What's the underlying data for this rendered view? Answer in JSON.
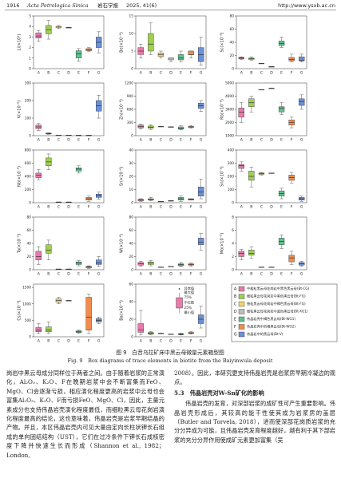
{
  "header": {
    "page": "1916",
    "journal": "Acta Petrologica Sinica",
    "journal_cn": "岩石学报",
    "issue": "2025, 41(6)",
    "url": "http://www.ysxb.ac.cn"
  },
  "chart_data": [
    {
      "type": "box",
      "y_label": "Li(×10³)",
      "categories": [
        "A",
        "B",
        "C",
        "D",
        "E",
        "F",
        "G"
      ],
      "colors": [
        "#e97aab",
        "#9fd052",
        "#f3d36a",
        "#bdbdbd",
        "#5cc28c",
        "#f08c4c",
        "#6b8fd8"
      ],
      "ylim": [
        0,
        5
      ],
      "yticks": [
        0,
        1,
        2,
        3,
        4,
        5
      ],
      "boxes": [
        [
          2.6,
          2.9,
          3.1,
          3.4,
          3.6
        ],
        [
          2.8,
          3.3,
          3.7,
          4.1,
          4.6
        ],
        [
          3.8,
          3.9,
          4.0,
          4.0,
          4.1
        ],
        [
          3.9,
          3.9,
          3.9,
          3.9,
          3.9
        ],
        [
          0.7,
          1.0,
          1.4,
          1.7,
          1.9
        ],
        [
          1.6,
          1.7,
          1.8,
          1.9,
          2.0
        ],
        [
          1.5,
          2.0,
          2.5,
          3.0,
          3.5
        ]
      ]
    },
    {
      "type": "box",
      "y_label": "Be(×10⁻⁶)",
      "categories": [
        "A",
        "B",
        "C",
        "D",
        "E",
        "F",
        "G"
      ],
      "colors": [
        "#e97aab",
        "#9fd052",
        "#f3d36a",
        "#bdbdbd",
        "#5cc28c",
        "#f08c4c",
        "#6b8fd8"
      ],
      "ylim": [
        0,
        15
      ],
      "yticks": [
        0,
        5,
        10,
        15
      ],
      "boxes": [
        [
          3,
          4,
          5,
          6,
          7
        ],
        [
          4,
          5,
          7,
          10,
          13
        ],
        [
          3,
          3.5,
          4,
          4.5,
          5
        ],
        [
          2,
          2.5,
          3,
          3,
          3
        ],
        [
          2,
          2.5,
          3,
          4,
          5
        ],
        [
          3,
          4,
          4,
          5,
          5
        ],
        [
          1,
          2,
          4,
          6,
          9
        ]
      ]
    },
    {
      "type": "box",
      "y_label": "Sc(×10⁻⁶)",
      "categories": [
        "A",
        "B",
        "C",
        "D",
        "E",
        "F",
        "G"
      ],
      "colors": [
        "#e97aab",
        "#9fd052",
        "#f3d36a",
        "#bdbdbd",
        "#5cc28c",
        "#f08c4c",
        "#6b8fd8"
      ],
      "ylim": [
        0,
        80
      ],
      "yticks": [
        0,
        20,
        40,
        60,
        80
      ],
      "boxes": [
        [
          14,
          15,
          16,
          17,
          18
        ],
        [
          13,
          14,
          15,
          16,
          18
        ],
        [
          8,
          8,
          8,
          8,
          8
        ],
        [
          3,
          3,
          3,
          3,
          3
        ],
        [
          32,
          35,
          38,
          42,
          48
        ],
        [
          10,
          12,
          14,
          17,
          22
        ],
        [
          10,
          12,
          13,
          18,
          22
        ]
      ]
    },
    {
      "type": "box",
      "y_label": "V(×10⁻⁶)",
      "categories": [
        "A",
        "B",
        "C",
        "D",
        "E",
        "F",
        "G"
      ],
      "colors": [
        "#e97aab",
        "#9fd052",
        "#f3d36a",
        "#bdbdbd",
        "#5cc28c",
        "#f08c4c",
        "#6b8fd8"
      ],
      "ylim": [
        0,
        300
      ],
      "yticks": [
        0,
        100,
        200,
        300
      ],
      "boxes": [
        [
          30,
          40,
          50,
          60,
          70
        ],
        [
          8,
          10,
          12,
          14,
          16
        ],
        [
          3,
          3,
          3,
          3,
          3
        ],
        [
          3,
          3,
          3,
          3,
          3
        ],
        [
          2,
          2,
          2,
          2,
          2
        ],
        [
          2,
          2,
          2,
          2,
          2
        ],
        [
          100,
          140,
          170,
          200,
          230
        ]
      ]
    },
    {
      "type": "box",
      "y_label": "Zn(×10⁻⁶)",
      "categories": [
        "A",
        "B",
        "C",
        "D",
        "E",
        "F",
        "G"
      ],
      "colors": [
        "#e97aab",
        "#9fd052",
        "#f3d36a",
        "#bdbdbd",
        "#5cc28c",
        "#f08c4c",
        "#6b8fd8"
      ],
      "ylim": [
        0,
        1200
      ],
      "yticks": [
        0,
        300,
        600,
        900,
        1200
      ],
      "boxes": [
        [
          150,
          180,
          210,
          240,
          260
        ],
        [
          140,
          170,
          190,
          220,
          250
        ],
        [
          210,
          210,
          210,
          210,
          210
        ],
        [
          200,
          200,
          200,
          200,
          200
        ],
        [
          130,
          150,
          160,
          200,
          230
        ],
        [
          170,
          190,
          200,
          210,
          230
        ],
        [
          550,
          620,
          680,
          740,
          800
        ]
      ]
    },
    {
      "type": "box",
      "y_label": "Rb(×10⁻⁶)",
      "categories": [
        "A",
        "B",
        "C",
        "D",
        "E",
        "F",
        "G"
      ],
      "colors": [
        "#e97aab",
        "#9fd052",
        "#f3d36a",
        "#bdbdbd",
        "#5cc28c",
        "#f08c4c",
        "#6b8fd8"
      ],
      "ylim": [
        1000,
        5000
      ],
      "yticks": [
        1000,
        2000,
        3000,
        4000,
        5000
      ],
      "boxes": [
        [
          2000,
          2400,
          2800,
          3100,
          3500
        ],
        [
          2800,
          3200,
          3500,
          3800,
          4000
        ],
        [
          4500,
          4500,
          4500,
          4500,
          4500
        ],
        [
          4600,
          4600,
          4600,
          4600,
          4600
        ],
        [
          2600,
          2800,
          3100,
          3200,
          3500
        ],
        [
          1600,
          1800,
          2000,
          2200,
          2400
        ],
        [
          3000,
          3300,
          3600,
          3800,
          4100
        ]
      ]
    },
    {
      "type": "box",
      "y_label": "Nb(×10⁻⁶)",
      "categories": [
        "A",
        "B",
        "C",
        "D",
        "E",
        "F",
        "G"
      ],
      "colors": [
        "#e97aab",
        "#9fd052",
        "#f3d36a",
        "#bdbdbd",
        "#5cc28c",
        "#f08c4c",
        "#6b8fd8"
      ],
      "ylim": [
        0,
        800
      ],
      "yticks": [
        0,
        200,
        400,
        600,
        800
      ],
      "boxes": [
        [
          350,
          380,
          420,
          450,
          500
        ],
        [
          500,
          560,
          620,
          680,
          740
        ],
        [
          10,
          10,
          10,
          10,
          10
        ],
        [
          10,
          10,
          10,
          10,
          10
        ],
        [
          450,
          480,
          510,
          530,
          560
        ],
        [
          20,
          40,
          60,
          80,
          100
        ],
        [
          50,
          80,
          110,
          130,
          160
        ]
      ]
    },
    {
      "type": "box",
      "y_label": "Sr(×10⁻⁶)",
      "categories": [
        "A",
        "B",
        "C",
        "D",
        "E",
        "F",
        "G"
      ],
      "colors": [
        "#e97aab",
        "#9fd052",
        "#f3d36a",
        "#bdbdbd",
        "#5cc28c",
        "#f08c4c",
        "#6b8fd8"
      ],
      "ylim": [
        0,
        40
      ],
      "yticks": [
        0,
        10,
        20,
        30,
        40
      ],
      "boxes": [
        [
          1,
          1.5,
          2,
          2.5,
          3
        ],
        [
          1.5,
          2,
          2.5,
          3,
          4
        ],
        [
          1,
          1,
          1,
          1,
          1
        ],
        [
          1.5,
          1.5,
          1.5,
          1.5,
          1.5
        ],
        [
          1,
          2,
          3,
          4,
          5
        ],
        [
          2,
          2,
          2.5,
          3,
          3
        ],
        [
          3,
          5,
          8,
          12,
          18
        ]
      ]
    },
    {
      "type": "box",
      "y_label": "Sn(×10⁻⁶)",
      "categories": [
        "A",
        "B",
        "C",
        "D",
        "E",
        "F",
        "G"
      ],
      "colors": [
        "#e97aab",
        "#9fd052",
        "#f3d36a",
        "#bdbdbd",
        "#5cc28c",
        "#f08c4c",
        "#6b8fd8"
      ],
      "ylim": [
        0,
        400
      ],
      "yticks": [
        0,
        100,
        200,
        300,
        400
      ],
      "boxes": [
        [
          240,
          260,
          280,
          290,
          310
        ],
        [
          120,
          170,
          200,
          240,
          270
        ],
        [
          210,
          215,
          220,
          225,
          230
        ],
        [
          225,
          225,
          225,
          225,
          225
        ],
        [
          30,
          50,
          70,
          90,
          110
        ],
        [
          150,
          170,
          190,
          210,
          230
        ],
        [
          10,
          20,
          30,
          40,
          50
        ]
      ]
    },
    {
      "type": "box",
      "y_label": "Ta(×10⁻⁶)",
      "categories": [
        "A",
        "B",
        "C",
        "D",
        "E",
        "F",
        "G"
      ],
      "colors": [
        "#e97aab",
        "#9fd052",
        "#f3d36a",
        "#bdbdbd",
        "#5cc28c",
        "#f08c4c",
        "#6b8fd8"
      ],
      "ylim": [
        0,
        80
      ],
      "yticks": [
        0,
        20,
        40,
        60,
        80
      ],
      "boxes": [
        [
          8,
          15,
          20,
          28,
          35
        ],
        [
          15,
          25,
          30,
          38,
          45
        ],
        [
          1,
          1,
          1,
          1,
          1
        ],
        [
          1,
          1,
          1,
          1,
          1
        ],
        [
          6,
          8,
          10,
          12,
          14
        ],
        [
          2,
          3,
          4,
          5,
          6
        ],
        [
          5,
          8,
          10,
          15,
          20
        ]
      ]
    },
    {
      "type": "box",
      "y_label": "W(×10⁻⁶)",
      "categories": [
        "A",
        "B",
        "C",
        "D",
        "E",
        "F",
        "G"
      ],
      "colors": [
        "#e97aab",
        "#9fd052",
        "#f3d36a",
        "#bdbdbd",
        "#5cc28c",
        "#f08c4c",
        "#6b8fd8"
      ],
      "ylim": [
        0,
        80
      ],
      "yticks": [
        0,
        20,
        40,
        60,
        80
      ],
      "boxes": [
        [
          5,
          7,
          9,
          11,
          13
        ],
        [
          6,
          8,
          10,
          12,
          14
        ],
        [
          4,
          4,
          4,
          4,
          4
        ],
        [
          5,
          5,
          5,
          5,
          5
        ],
        [
          5,
          6,
          8,
          9,
          11
        ],
        [
          5,
          7,
          8,
          9,
          10
        ],
        [
          30,
          38,
          42,
          48,
          55
        ]
      ]
    },
    {
      "type": "box",
      "y_label": "Mo(×10⁻⁶)",
      "categories": [
        "A",
        "B",
        "C",
        "D",
        "E",
        "F",
        "G"
      ],
      "colors": [
        "#e97aab",
        "#9fd052",
        "#f3d36a",
        "#bdbdbd",
        "#5cc28c",
        "#f08c4c",
        "#6b8fd8"
      ],
      "ylim": [
        0,
        8
      ],
      "yticks": [
        0,
        2,
        4,
        6,
        8
      ],
      "boxes": [
        [
          1.5,
          2,
          2.5,
          2.8,
          3.1
        ],
        [
          1.7,
          2.2,
          2.5,
          3,
          3.5
        ],
        [
          0.4,
          0.4,
          0.4,
          0.4,
          0.4
        ],
        [
          0.4,
          0.4,
          0.4,
          0.4,
          0.4
        ],
        [
          3.2,
          3.8,
          4.3,
          4.8,
          5.3
        ],
        [
          0.8,
          1.2,
          1.8,
          2.2,
          2.8
        ],
        [
          0.5,
          0.7,
          0.9,
          1.1,
          1.3
        ]
      ]
    },
    {
      "type": "box",
      "y_label": "Cs(×10⁻⁶)",
      "categories": [
        "A",
        "B",
        "C",
        "D",
        "E",
        "F",
        "G"
      ],
      "colors": [
        "#e97aab",
        "#9fd052",
        "#f3d36a",
        "#bdbdbd",
        "#5cc28c",
        "#f08c4c",
        "#6b8fd8"
      ],
      "ylim": [
        0,
        1600
      ],
      "yticks": [
        0,
        500,
        1000,
        1500
      ],
      "boxes": [
        [
          100,
          150,
          200,
          280,
          400
        ],
        [
          100,
          150,
          200,
          300,
          450
        ],
        [
          1000,
          1050,
          1100,
          1150,
          1200
        ],
        [
          1100,
          1100,
          1100,
          1100,
          1100
        ],
        [
          100,
          130,
          150,
          180,
          200
        ],
        [
          100,
          200,
          600,
          1200,
          1300
        ],
        [
          400,
          450,
          500,
          550,
          600
        ]
      ]
    },
    {
      "type": "box",
      "y_label": "Ba(×10⁻⁶)",
      "categories": [
        "A",
        "B",
        "C",
        "D",
        "E",
        "F",
        "G"
      ],
      "colors": [
        "#e97aab",
        "#9fd052",
        "#f3d36a",
        "#bdbdbd",
        "#5cc28c",
        "#f08c4c",
        "#6b8fd8"
      ],
      "ylim": [
        0,
        60
      ],
      "yticks": [
        0,
        20,
        40,
        60
      ],
      "key_labels": [
        "异常值",
        "最大值",
        "75%",
        "中位数",
        "25%",
        "最小值"
      ],
      "boxes": [
        [
          2,
          5,
          8,
          15,
          30
        ],
        [
          2,
          3,
          4,
          5,
          6
        ],
        [
          4,
          4,
          4,
          4,
          4
        ],
        [
          3,
          3,
          3,
          3,
          3
        ],
        [
          2,
          2.5,
          3,
          3.5,
          4
        ],
        [
          3,
          4,
          4,
          5,
          6
        ],
        [
          10,
          15,
          20,
          25,
          35
        ]
      ]
    }
  ],
  "legend": {
    "items": [
      {
        "letter": "A",
        "label": "中粗粒黑云母花岗岩中黑色黑云母(Bt-CG)",
        "color": "#e97aab"
      },
      {
        "letter": "B",
        "label": "细粒黑云母花岗岩中黑色黑云母(Bt-FG)",
        "color": "#9fd052"
      },
      {
        "letter": "C",
        "label": "细粒黑云母花岗岩中褐色黑云母(Bt-FG)",
        "color": "#f3d36a"
      },
      {
        "letter": "D",
        "label": "细粒黑云母花岗岩中蓝色黑云母(Bt-XG1)",
        "color": "#bdbdbd"
      },
      {
        "letter": "E",
        "label": "伟晶岩壳中褐色黑云母(Bt-WG1)",
        "color": "#5cc28c"
      },
      {
        "letter": "F",
        "label": "伟晶岩壳中的褐黑云母(Bt-WG2)",
        "color": "#f08c4c"
      },
      {
        "letter": "G",
        "label": "伟晶岩中的黑云母(Bt-V)",
        "color": "#6b8fd8"
      }
    ]
  },
  "caption": {
    "cn": "图 9　白音乌拉矿床中黑云母微量元素箱型图",
    "en": "Fig. 9　Box diagrams of trace elements in biotite from the Baiyinwula deposit"
  },
  "body": {
    "left": "岗岩中黑云母成分同样位于两者之间。由于随着岩浆的正常演化，Al₂O₃、K₂O、F在晚期岩浆中会不断富集而FeO、MgO、Cl会逐渐亏损，相应演化程度更高的岩浆中云母也会富集Al₂O₃、K₂O、F而亏损FeO、MgO、Cl，因此，主量元素成分也支持伟晶岩壳演化程度最低，而细粒黑云母花岗岩演化程度最高的结论，这也意味着，伟晶岩壳是岩浆早期结晶的产物。并且，本区伟晶岩壳内可见大量由定向长柱状钾长石组成的单向固结结构（UST），它们在过冷条件下钾长石成核密度下降并快速生长而形成（Shannon et al., 1982；London,",
    "right_first": "2008）。因此，本研究更支持伟晶岩壳是岩浆房早期冷凝边的观点。",
    "section_heading": "5.3　伟晶岩壳对W-Sn矿化的影响",
    "right_second": "伟晶岩壳的发育，对深部岩浆的成矿性可产生重要影响。伟晶岩壳形成后，其较高的能干性使其成为岩浆房的盖层（Butler and Torvela, 2018），进而使深部花岗质岩浆的充分分异成为可能，且伟晶岩壳发育程度越好，越有利于其下部岩浆的充分分异作用使成矿元素更加富集（吴"
  }
}
